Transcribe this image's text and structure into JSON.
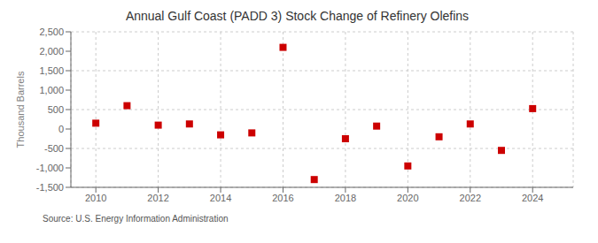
{
  "chart_data": {
    "type": "scatter",
    "title": "Annual Gulf Coast (PADD 3) Stock Change of Refinery Olefins",
    "y_label": "Thousand Barrels",
    "annotation": "Source: U.S. Energy Information Administration",
    "x": [
      2010,
      2011,
      2012,
      2013,
      2014,
      2015,
      2016,
      2017,
      2018,
      2019,
      2020,
      2021,
      2022,
      2023,
      2024
    ],
    "values": [
      150,
      600,
      100,
      130,
      -150,
      -100,
      2100,
      -1300,
      -250,
      75,
      -950,
      -200,
      130,
      -550,
      525
    ],
    "xlim": [
      2009.2,
      2025.3
    ],
    "ylim": [
      -1500,
      2500
    ],
    "xticks": [
      2010,
      2012,
      2014,
      2016,
      2018,
      2020,
      2022,
      2024
    ],
    "yticks": [
      {
        "value": -1500,
        "label": "-1,500"
      },
      {
        "value": -1000,
        "label": "-1,000"
      },
      -500,
      0,
      500,
      {
        "value": 1000,
        "label": "1,000"
      },
      {
        "value": 1500,
        "label": "1,500"
      },
      {
        "value": 2000,
        "label": "2,000"
      },
      {
        "value": 2500,
        "label": "2,500"
      }
    ],
    "color": "#CC0000",
    "marker": "square",
    "grid": true
  }
}
